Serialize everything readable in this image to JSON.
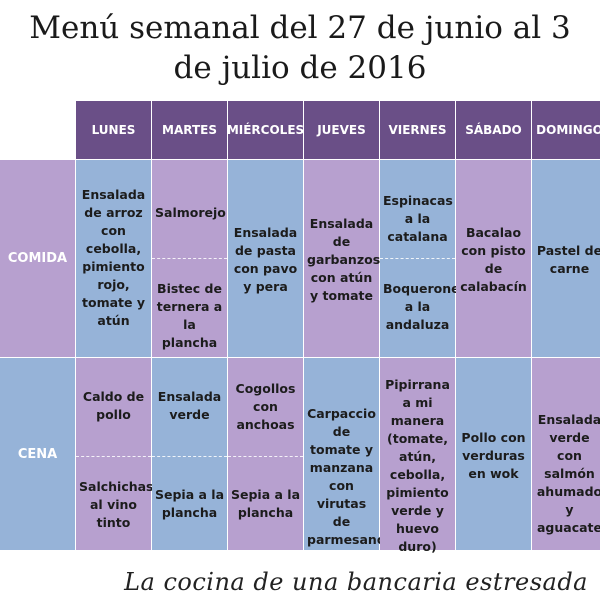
{
  "title_line1": "Menú semanal del 27 de junio al 3",
  "title_line2": "de julio de 2016",
  "days": [
    "LUNES",
    "MARTES",
    "MIÉRCOLES",
    "JUEVES",
    "VIERNES",
    "SÁBADO",
    "DOMINGO"
  ],
  "rows": [
    "COMIDA",
    "CENA"
  ],
  "comida": {
    "lunes": "Ensalada de arroz con cebolla, pimiento rojo, tomate y atún",
    "martes_1": "Salmorejo",
    "martes_2": "Bistec de ternera a la plancha",
    "miercoles": "Ensalada de pasta con pavo y pera",
    "jueves": "Ensalada de garbanzos con atún y tomate",
    "viernes_1": "Espinacas a la catalana",
    "viernes_2": "Boquerones a la andaluza",
    "sabado": "Bacalao con pisto de calabacín",
    "domingo": "Pastel de carne"
  },
  "cena": {
    "lunes_1": "Caldo de pollo",
    "lunes_2": "Salchichas al vino tinto",
    "martes_1": "Ensalada verde",
    "martes_2": "Sepia a la plancha",
    "miercoles_1": "Cogollos con anchoas",
    "miercoles_2": "Sepia a la plancha",
    "jueves": "Carpaccio de tomate y manzana con virutas de parmesano",
    "viernes": "Pipirrana a mi manera (tomate, atún, cebolla, pimiento verde y huevo duro)",
    "sabado": "Pollo con verduras en wok",
    "domingo": "Ensalada verde con salmón ahumado y aguacate"
  },
  "signature": "La cocina de una bancaria estresada",
  "colors": {
    "header": "#6a4f87",
    "violet": "#b7a0cf",
    "blue": "#96b3d8"
  }
}
